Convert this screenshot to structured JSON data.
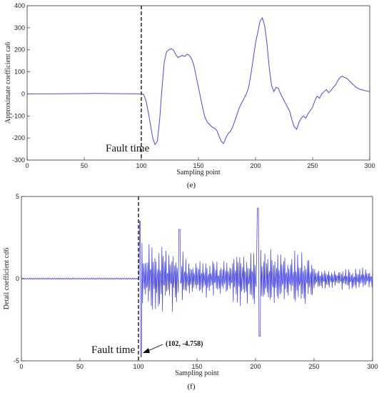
{
  "chart_data": [
    {
      "type": "line",
      "panel_label": "(e)",
      "xlabel": "Sampling point",
      "ylabel": "Approximate coefficient ca6",
      "xlim": [
        0,
        300
      ],
      "ylim": [
        -300,
        400
      ],
      "xticks": [
        "0",
        "50",
        "100",
        "150",
        "200",
        "250",
        "300"
      ],
      "yticks": [
        "-300",
        "-200",
        "-100",
        "0",
        "100",
        "200",
        "300",
        "400"
      ],
      "grid": false,
      "line_color": "#4a4ae0",
      "x": [
        0,
        20,
        40,
        60,
        80,
        100,
        102,
        104,
        106,
        108,
        110,
        112,
        114,
        116,
        118,
        120,
        122,
        124,
        126,
        128,
        130,
        132,
        134,
        136,
        138,
        140,
        142,
        144,
        146,
        148,
        150,
        152,
        154,
        156,
        158,
        160,
        162,
        164,
        166,
        168,
        170,
        172,
        174,
        176,
        178,
        180,
        182,
        184,
        186,
        188,
        190,
        192,
        194,
        196,
        198,
        200,
        202,
        204,
        206,
        208,
        210,
        212,
        214,
        216,
        218,
        220,
        222,
        224,
        226,
        228,
        230,
        232,
        234,
        236,
        238,
        240,
        242,
        244,
        246,
        248,
        250,
        252,
        254,
        256,
        258,
        260,
        262,
        264,
        266,
        268,
        270,
        272,
        274,
        276,
        278,
        280,
        282,
        284,
        286,
        288,
        290,
        292,
        294,
        296,
        298,
        300
      ],
      "y": [
        0,
        0,
        1,
        2,
        1,
        0,
        -2,
        -30,
        -80,
        -140,
        -200,
        -230,
        -215,
        -120,
        20,
        140,
        190,
        200,
        205,
        200,
        180,
        165,
        170,
        175,
        170,
        180,
        175,
        160,
        130,
        80,
        30,
        -20,
        -70,
        -110,
        -130,
        -140,
        -150,
        -155,
        -165,
        -190,
        -215,
        -225,
        -200,
        -180,
        -170,
        -150,
        -120,
        -90,
        -60,
        -40,
        -20,
        0,
        30,
        90,
        160,
        230,
        280,
        330,
        345,
        310,
        230,
        120,
        40,
        10,
        30,
        25,
        0,
        -20,
        -40,
        -60,
        -80,
        -120,
        -150,
        -160,
        -130,
        -110,
        -100,
        -110,
        -90,
        -75,
        -60,
        -30,
        -10,
        -20,
        0,
        10,
        20,
        5,
        15,
        30,
        40,
        60,
        75,
        80,
        75,
        70,
        60,
        50,
        40,
        30,
        25,
        20,
        18,
        15,
        12,
        10
      ],
      "annotations": [
        {
          "text": "Fault time",
          "x": 100
        }
      ]
    },
    {
      "type": "line",
      "panel_label": "(f)",
      "xlabel": "Sampling point",
      "ylabel": "Detail coefficient cd6",
      "xlim": [
        0,
        300
      ],
      "ylim": [
        -5,
        5
      ],
      "xticks": [
        "0",
        "50",
        "100",
        "150",
        "200",
        "250",
        "300"
      ],
      "yticks": [
        "-5",
        "0",
        "5"
      ],
      "grid": false,
      "line_color": "#4a4ae0",
      "annotations": [
        {
          "text": "Fault time",
          "x": 100
        },
        {
          "text": "(102, -4.758)",
          "x": 102,
          "y": -4.758
        }
      ]
    }
  ]
}
